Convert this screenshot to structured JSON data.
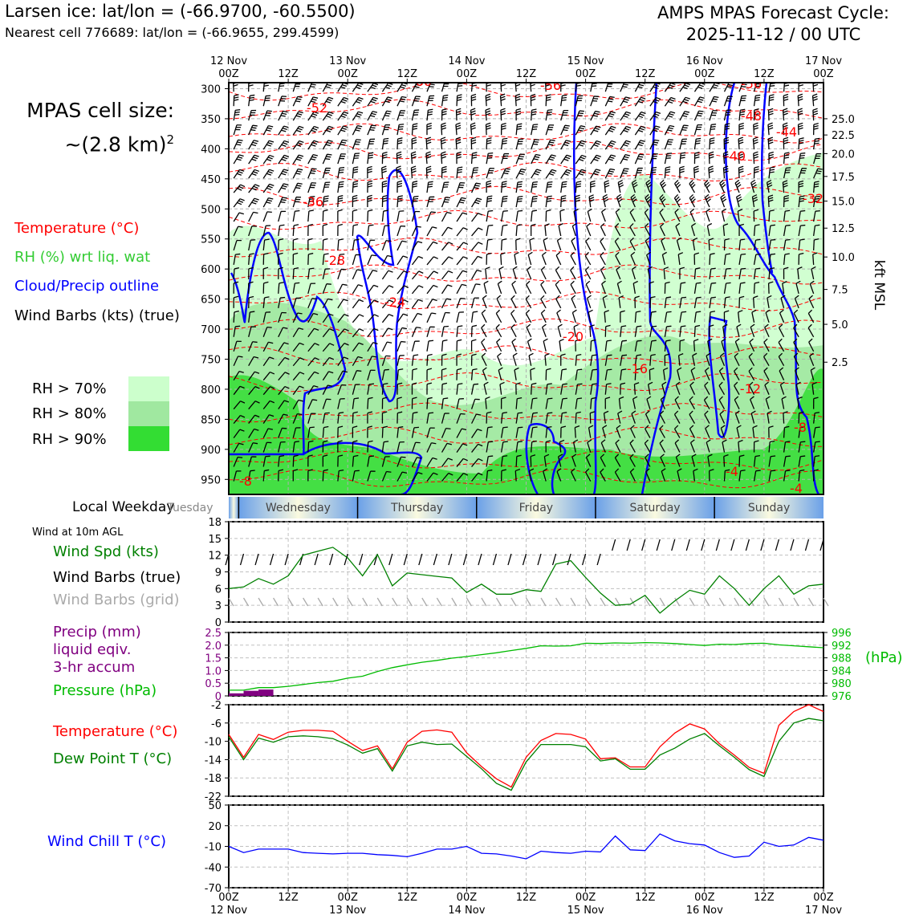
{
  "header": {
    "station": "Larsen ice: lat/lon = (-66.9700, -60.5500)",
    "nearest": "Nearest cell 776689: lat/lon = (-66.9655, 299.4599)",
    "forecast_title": "AMPS MPAS Forecast Cycle:",
    "forecast_cycle": "2025-11-12 / 00 UTC",
    "cell_size_line1": "MPAS cell size:",
    "cell_size_line2": "~(2.8 km)",
    "cell_size_exp": "2"
  },
  "legend": {
    "temperature": "Temperature (°C)",
    "rh": "RH (%) wrt liq. wat",
    "cloud": "Cloud/Precip outline",
    "wind": "Wind Barbs (kts) (true)",
    "rh70": "RH > 70%",
    "rh80": "RH > 80%",
    "rh90": "RH > 90%",
    "colors": {
      "temperature": "#ff0000",
      "rh": "#33cc33",
      "cloud": "#0000ff",
      "rh70": "#ccffcc",
      "rh80": "#a0e8a0",
      "rh90": "#33dd33"
    }
  },
  "time_axis": {
    "top_ticks": [
      "12 Nov\n00Z",
      "12Z",
      "13 Nov\n00Z",
      "12Z",
      "14 Nov\n00Z",
      "12Z",
      "15 Nov\n00Z",
      "12Z",
      "16 Nov\n00Z",
      "12Z",
      "17 Nov\n00Z"
    ],
    "bottom_ticks": [
      "00Z",
      "12Z",
      "00Z",
      "12Z",
      "00Z",
      "12Z",
      "00Z",
      "12Z",
      "00Z",
      "12Z",
      "00Z"
    ],
    "bottom_dates": [
      "12 Nov",
      "",
      "13 Nov",
      "",
      "14 Nov",
      "",
      "15 Nov",
      "",
      "16 Nov",
      "",
      "17 Nov"
    ]
  },
  "weekday": {
    "label": "Local Weekday",
    "days": [
      "Tuesday",
      "Wednesday",
      "Thursday",
      "Friday",
      "Saturday",
      "Sunday"
    ]
  },
  "labels": {
    "kft": "kft MSL",
    "wind10m": "Wind at 10m AGL",
    "wind_spd": "Wind Spd (kts)",
    "wind_barbs_true": "Wind Barbs (true)",
    "wind_barbs_grid": "Wind Barbs (grid)",
    "precip1": "Precip (mm)",
    "precip2": "liquid eqiv.",
    "precip3": "3-hr accum",
    "pressure": "Pressure (hPa)",
    "hpa": "(hPa)",
    "temp": "Temperature (°C)",
    "dewpt": "Dew Point T (°C)",
    "windchill": "Wind Chill T (°C)"
  },
  "chart_data": [
    {
      "type": "contour",
      "title": "Time-height cross section",
      "y_pressure_ticks": [
        300,
        350,
        400,
        450,
        500,
        550,
        600,
        650,
        700,
        750,
        800,
        850,
        900,
        950
      ],
      "y_kft_ticks": [
        25.0,
        22.5,
        20.0,
        17.5,
        15.0,
        12.5,
        10.0,
        7.5,
        5.0,
        2.5
      ],
      "ylim_hpa": [
        290,
        975
      ],
      "temperature_contour_labels": [
        "-60",
        "-56",
        "-56",
        "-52",
        "-48",
        "-44",
        "-40",
        "-36",
        "-32",
        "-28",
        "-24",
        "-20",
        "-16",
        "-12",
        "-8",
        "-8",
        "-4",
        "-4"
      ]
    },
    {
      "type": "line",
      "title": "Wind Spd (kts)",
      "ylim": [
        0,
        18
      ],
      "yticks": [
        0,
        3,
        6,
        9,
        12,
        15,
        18
      ],
      "x_hours": [
        0,
        3,
        6,
        9,
        12,
        15,
        18,
        21,
        24,
        27,
        30,
        33,
        36,
        39,
        42,
        45,
        48,
        51,
        54,
        57,
        60,
        63,
        66,
        69,
        72,
        75,
        78,
        81,
        84,
        87,
        90,
        93,
        96,
        99,
        102,
        105,
        108,
        111,
        114,
        117,
        120
      ],
      "series": [
        {
          "name": "Wind Spd",
          "color": "#008000",
          "values": [
            6,
            6.3,
            7.8,
            6.8,
            8.3,
            12,
            12.7,
            13.4,
            11.5,
            8.3,
            12.1,
            6.5,
            8.8,
            8.5,
            8.2,
            7.9,
            5.3,
            6.8,
            5.0,
            5.0,
            5.8,
            5.5,
            10.4,
            11.0,
            8.0,
            5.2,
            3.0,
            3.2,
            4.8,
            1.6,
            3.8,
            5.7,
            5.0,
            8.3,
            6.0,
            3.0,
            6.0,
            8.3,
            5.0,
            6.5,
            6.8
          ]
        }
      ]
    },
    {
      "type": "bar+line",
      "title": "Precip and Pressure",
      "precip_ylim": [
        0,
        2.5
      ],
      "precip_yticks": [
        0,
        0.5,
        1.0,
        1.5,
        2.0,
        2.5
      ],
      "precip_values": [
        0.1,
        0.2,
        0.25,
        0,
        0,
        0,
        0,
        0,
        0,
        0,
        0,
        0,
        0,
        0,
        0,
        0,
        0,
        0,
        0,
        0,
        0,
        0,
        0,
        0,
        0,
        0,
        0,
        0,
        0,
        0,
        0,
        0,
        0,
        0,
        0,
        0,
        0,
        0,
        0,
        0
      ],
      "precip_color": "#800080",
      "pressure_ylim": [
        976,
        996
      ],
      "pressure_yticks": [
        976,
        980,
        984,
        988,
        992,
        996
      ],
      "pressure_color": "#00bb00",
      "pressure_values": [
        977.8,
        977.8,
        978.6,
        978.6,
        979.0,
        979.6,
        980.2,
        980.6,
        981.6,
        982.2,
        983.7,
        984.9,
        985.8,
        986.6,
        987.2,
        987.9,
        988.4,
        989.0,
        989.6,
        990.3,
        991.0,
        991.8,
        991.7,
        991.8,
        992.6,
        992.5,
        992.7,
        992.6,
        992.8,
        992.7,
        992.5,
        992.2,
        991.9,
        992.3,
        992.2,
        992.5,
        992.6,
        992.1,
        991.8,
        991.5,
        991.2
      ]
    },
    {
      "type": "line",
      "title": "Temperature and Dew Point",
      "ylim": [
        -22,
        -2
      ],
      "yticks": [
        -22,
        -18,
        -14,
        -10,
        -6,
        -2
      ],
      "series": [
        {
          "name": "Temperature",
          "color": "#ff0000",
          "values": [
            -8.5,
            -13.5,
            -8.5,
            -9.6,
            -8.0,
            -7.6,
            -7.6,
            -7.8,
            -10.0,
            -12.0,
            -11.0,
            -16.0,
            -10.2,
            -7.8,
            -7.5,
            -8.0,
            -12.5,
            -15.5,
            -18.2,
            -20.0,
            -13.5,
            -9.8,
            -8.3,
            -8.5,
            -9.5,
            -13.8,
            -13.6,
            -15.6,
            -15.6,
            -11.2,
            -8.2,
            -6.2,
            -7.3,
            -10.5,
            -13.0,
            -15.7,
            -17.0,
            -6.5,
            -3.5,
            -2.0,
            -3.5
          ]
        },
        {
          "name": "Dew Point",
          "color": "#008000",
          "values": [
            -9.0,
            -14.0,
            -9.3,
            -10.2,
            -9.0,
            -8.8,
            -9.0,
            -9.4,
            -10.8,
            -12.6,
            -11.6,
            -16.5,
            -11.0,
            -10.2,
            -10.7,
            -10.6,
            -13.3,
            -16.0,
            -19.2,
            -20.7,
            -14.5,
            -10.7,
            -10.7,
            -10.7,
            -11.2,
            -14.3,
            -13.8,
            -16.1,
            -16.1,
            -13.0,
            -11.5,
            -9.5,
            -8.3,
            -11.0,
            -13.5,
            -16.2,
            -17.7,
            -10.0,
            -6.0,
            -5.0,
            -5.5
          ]
        }
      ]
    },
    {
      "type": "line",
      "title": "Wind Chill T",
      "ylim": [
        -70,
        50
      ],
      "yticks": [
        -70,
        -40,
        -10,
        20,
        50
      ],
      "series": [
        {
          "name": "Wind Chill",
          "color": "#0000ff",
          "values": [
            -10,
            -19,
            -14,
            -14,
            -14,
            -19,
            -20,
            -21,
            -20,
            -20,
            -22,
            -23,
            -25,
            -20,
            -14,
            -14,
            -10,
            -20,
            -21,
            -24,
            -28,
            -17,
            -19,
            -20,
            -17,
            -18,
            5,
            -15,
            -16,
            8,
            -2,
            -6,
            -8,
            -19,
            -26,
            -24,
            -4,
            -10,
            -8,
            3,
            -1
          ]
        }
      ]
    }
  ]
}
